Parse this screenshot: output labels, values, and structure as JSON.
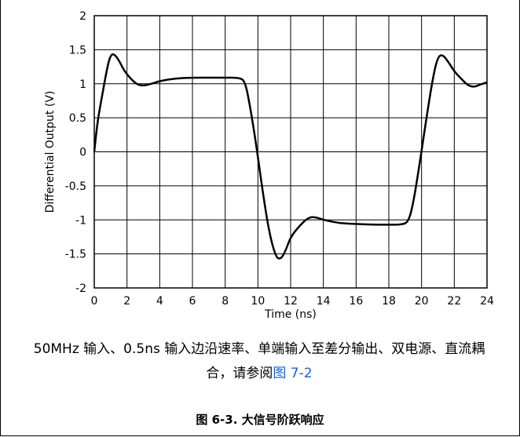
{
  "chart_data": {
    "type": "line",
    "xlabel": "Time (ns)",
    "ylabel": "Differential Output (V)",
    "xlim": [
      0,
      24
    ],
    "ylim": [
      -2,
      2
    ],
    "x_ticks": [
      "0",
      "2",
      "4",
      "6",
      "8",
      "10",
      "12",
      "14",
      "16",
      "18",
      "20",
      "22",
      "24"
    ],
    "y_ticks": [
      "2",
      "1.5",
      "1",
      "0.5",
      "0",
      "-0.5",
      "-1",
      "-1.5",
      "-2"
    ],
    "grid": true,
    "series": [
      {
        "color": "#000000",
        "points": [
          [
            0.0,
            0.0
          ],
          [
            0.2,
            0.45
          ],
          [
            0.5,
            0.85
          ],
          [
            0.8,
            1.25
          ],
          [
            1.0,
            1.42
          ],
          [
            1.2,
            1.44
          ],
          [
            1.5,
            1.35
          ],
          [
            1.8,
            1.2
          ],
          [
            2.2,
            1.08
          ],
          [
            2.6,
            0.99
          ],
          [
            3.0,
            0.97
          ],
          [
            3.5,
            1.0
          ],
          [
            4.0,
            1.04
          ],
          [
            5.0,
            1.08
          ],
          [
            6.0,
            1.09
          ],
          [
            7.0,
            1.09
          ],
          [
            8.0,
            1.09
          ],
          [
            8.8,
            1.09
          ],
          [
            9.2,
            1.05
          ],
          [
            9.5,
            0.7
          ],
          [
            9.9,
            0.1
          ],
          [
            10.3,
            -0.6
          ],
          [
            10.7,
            -1.2
          ],
          [
            11.1,
            -1.55
          ],
          [
            11.4,
            -1.58
          ],
          [
            11.7,
            -1.45
          ],
          [
            12.0,
            -1.25
          ],
          [
            12.5,
            -1.1
          ],
          [
            13.0,
            -0.98
          ],
          [
            13.4,
            -0.95
          ],
          [
            14.0,
            -1.0
          ],
          [
            15.0,
            -1.05
          ],
          [
            16.0,
            -1.06
          ],
          [
            17.0,
            -1.07
          ],
          [
            18.0,
            -1.07
          ],
          [
            18.8,
            -1.07
          ],
          [
            19.2,
            -1.03
          ],
          [
            19.5,
            -0.75
          ],
          [
            19.9,
            -0.15
          ],
          [
            20.3,
            0.5
          ],
          [
            20.7,
            1.1
          ],
          [
            21.0,
            1.4
          ],
          [
            21.3,
            1.43
          ],
          [
            21.7,
            1.3
          ],
          [
            22.0,
            1.18
          ],
          [
            22.4,
            1.08
          ],
          [
            22.8,
            0.98
          ],
          [
            23.2,
            0.95
          ],
          [
            23.6,
            0.99
          ],
          [
            24.0,
            1.02
          ]
        ]
      }
    ]
  },
  "note": {
    "text": "50MHz 输入、0.5ns 输入边沿速率、单端输入至差分输出、双电源、直流耦合，请参阅",
    "link": "图 7-2"
  },
  "figure_title": "图 6-3. 大信号阶跃响应"
}
